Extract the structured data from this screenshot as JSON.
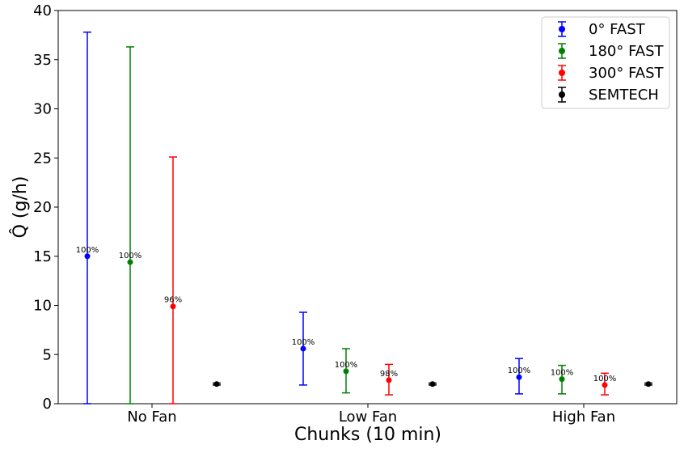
{
  "chart_data": {
    "type": "errorbar",
    "title": "",
    "xlabel": "Chunks (10 min)",
    "ylabel": "Q̂ (g/h)",
    "ylim": [
      0,
      40
    ],
    "yticks": [
      0,
      5,
      10,
      15,
      20,
      25,
      30,
      35,
      40
    ],
    "categories": [
      "No Fan",
      "Low Fan",
      "High Fan"
    ],
    "grid": false,
    "legend_position": "top-right",
    "series": [
      {
        "name": "0° FAST",
        "color": "#0000ff",
        "values": [
          15.0,
          5.6,
          2.7
        ],
        "lower": [
          0.0,
          1.9,
          1.0
        ],
        "upper": [
          37.8,
          9.3,
          4.6
        ],
        "labels": [
          "100%",
          "100%",
          "100%"
        ]
      },
      {
        "name": "180° FAST",
        "color": "#008000",
        "values": [
          14.4,
          3.3,
          2.5
        ],
        "lower": [
          0.0,
          1.1,
          1.0
        ],
        "upper": [
          36.3,
          5.6,
          3.9
        ],
        "labels": [
          "100%",
          "100%",
          "100%"
        ]
      },
      {
        "name": "300° FAST",
        "color": "#ff0000",
        "values": [
          9.9,
          2.4,
          1.9
        ],
        "lower": [
          0.0,
          0.9,
          0.9
        ],
        "upper": [
          25.1,
          4.0,
          3.1
        ],
        "labels": [
          "96%",
          "98%",
          "100%"
        ]
      },
      {
        "name": "SEMTECH",
        "color": "#000000",
        "values": [
          2.0,
          2.0,
          2.0
        ],
        "lower": [
          1.9,
          1.9,
          1.9
        ],
        "upper": [
          2.1,
          2.1,
          2.1
        ],
        "labels": [
          "",
          "",
          ""
        ]
      }
    ]
  }
}
